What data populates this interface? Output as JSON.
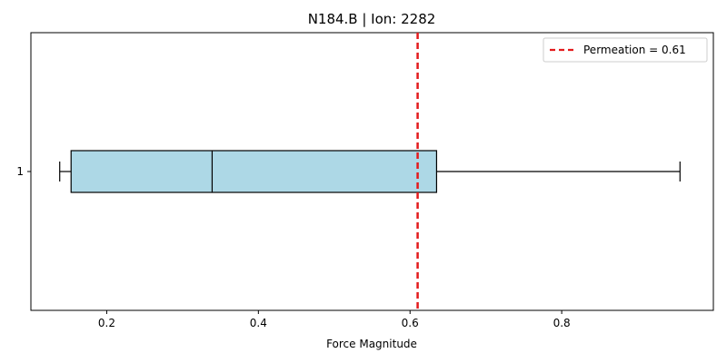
{
  "chart_data": {
    "type": "boxplot",
    "orientation": "horizontal",
    "title": "N184.B | Ion: 2282",
    "xlabel": "Force Magnitude",
    "ylabel": "",
    "xlim": [
      0.1,
      1.0
    ],
    "x_ticks": [
      0.2,
      0.4,
      0.6,
      0.8
    ],
    "x_tick_labels": [
      "0.2",
      "0.4",
      "0.6",
      "0.8"
    ],
    "y_tick_labels": [
      "1"
    ],
    "grid": false,
    "legend_position": "top-right",
    "box": {
      "category": "1",
      "whisker_low": 0.138,
      "q1": 0.153,
      "median": 0.339,
      "q3": 0.635,
      "whisker_high": 0.956
    },
    "reference_line": {
      "value": 0.61,
      "label": "Permeation = 0.61",
      "color": "#e31a1c",
      "style": "dashed"
    },
    "colors": {
      "box_fill": "#add8e6",
      "box_edge": "#000000",
      "median": "#000000",
      "reference": "#e31a1c"
    }
  }
}
